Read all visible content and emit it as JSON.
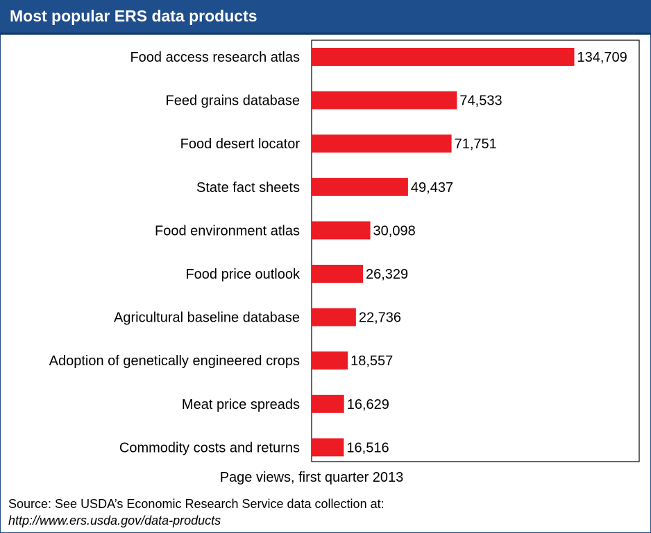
{
  "header": {
    "title": "Most popular ERS data products"
  },
  "chart_data": {
    "type": "bar",
    "orientation": "horizontal",
    "categories": [
      "Food access research atlas",
      "Feed grains database",
      "Food desert locator",
      "State fact sheets",
      "Food environment atlas",
      "Food price outlook",
      "Agricultural baseline database",
      "Adoption of genetically engineered crops",
      "Meat price spreads",
      "Commodity costs and returns"
    ],
    "values": [
      134709,
      74533,
      71751,
      49437,
      30098,
      26329,
      22736,
      18557,
      16629,
      16516
    ],
    "value_labels": [
      "134,709",
      "74,533",
      "71,751",
      "49,437",
      "30,098",
      "26,329",
      "22,736",
      "18,557",
      "16,629",
      "16,516"
    ],
    "xlabel": "Page views, first quarter 2013",
    "ylabel": "",
    "xlim": [
      0,
      168000
    ],
    "bar_color": "#ed1c24",
    "grid": false
  },
  "footer": {
    "source": "Source:  See USDA’s Economic Research Service data collection at:",
    "url": "http://www.ers.usda.gov/data-products"
  },
  "colors": {
    "header_bg": "#1f4e8c",
    "header_text": "#ffffff",
    "bar": "#ed1c24"
  }
}
